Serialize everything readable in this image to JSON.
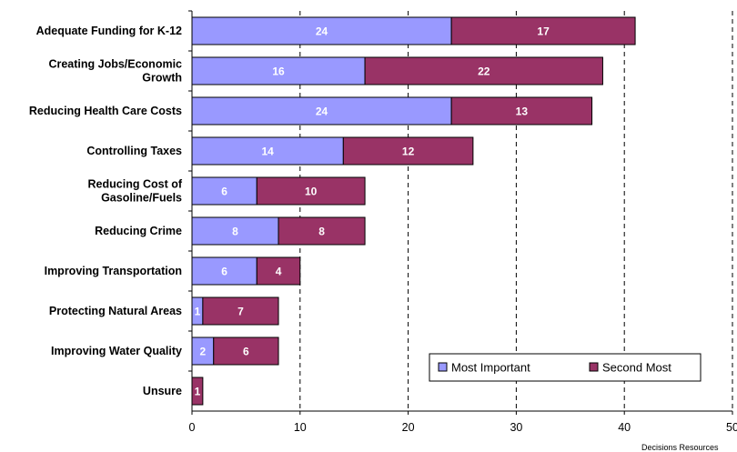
{
  "chart_data": {
    "type": "bar",
    "orientation": "horizontal",
    "stacked": true,
    "categories": [
      [
        "Adequate Funding for K-12"
      ],
      [
        "Creating Jobs/Economic",
        "Growth"
      ],
      [
        "Reducing Health Care Costs"
      ],
      [
        "Controlling Taxes"
      ],
      [
        "Reducing Cost of",
        "Gasoline/Fuels"
      ],
      [
        "Reducing Crime"
      ],
      [
        "Improving Transportation"
      ],
      [
        "Protecting Natural Areas"
      ],
      [
        "Improving Water Quality"
      ],
      [
        "Unsure"
      ]
    ],
    "series": [
      {
        "name": "Most Important",
        "color": "#9999ff",
        "values": [
          24,
          16,
          24,
          14,
          6,
          8,
          6,
          1,
          2,
          0
        ]
      },
      {
        "name": "Second Most",
        "color": "#993366",
        "values": [
          17,
          22,
          13,
          12,
          10,
          8,
          4,
          7,
          6,
          1
        ]
      }
    ],
    "xlim": [
      0,
      50
    ],
    "xticks": [
      "0",
      "10",
      "20",
      "30",
      "40",
      "50"
    ],
    "tick_values": [
      0,
      10,
      20,
      30,
      40,
      50
    ],
    "gridlines": "vertical dashed",
    "legend_position": "bottom-right",
    "source_note": "Decisions Resources"
  }
}
